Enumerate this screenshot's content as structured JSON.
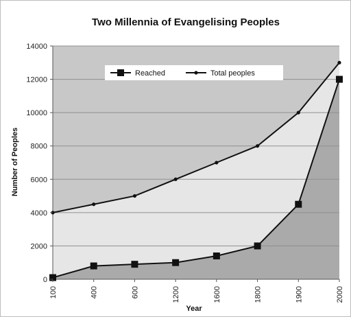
{
  "chart_data": {
    "type": "line",
    "title": "Two Millennia of Evangelising Peoples",
    "xlabel": "Year",
    "ylabel": "Number of Peoples",
    "categories": [
      "100",
      "400",
      "600",
      "1200",
      "1600",
      "1800",
      "1900",
      "2000"
    ],
    "x_tick_labels": [
      "100",
      "400",
      "600",
      "1200",
      "1600",
      "1800",
      "1900",
      "2000"
    ],
    "y_ticks": [
      0,
      2000,
      4000,
      6000,
      8000,
      10000,
      12000,
      14000
    ],
    "ylim": [
      0,
      14000
    ],
    "grid": true,
    "legend_position": "top-center",
    "series": [
      {
        "name": "Reached",
        "marker": "square",
        "color": "#111111",
        "values": [
          100,
          800,
          900,
          1000,
          1400,
          2000,
          4500,
          12000
        ]
      },
      {
        "name": "Total peoples",
        "marker": "dot",
        "color": "#111111",
        "values": [
          4000,
          4500,
          5000,
          6000,
          7000,
          8000,
          10000,
          13000
        ]
      }
    ],
    "colors": {
      "plot_bg": "#c8c8c8",
      "between_fill": "#e6e6e6",
      "under_fill": "#aaaaaa",
      "grid": "#8f8f8f"
    }
  }
}
